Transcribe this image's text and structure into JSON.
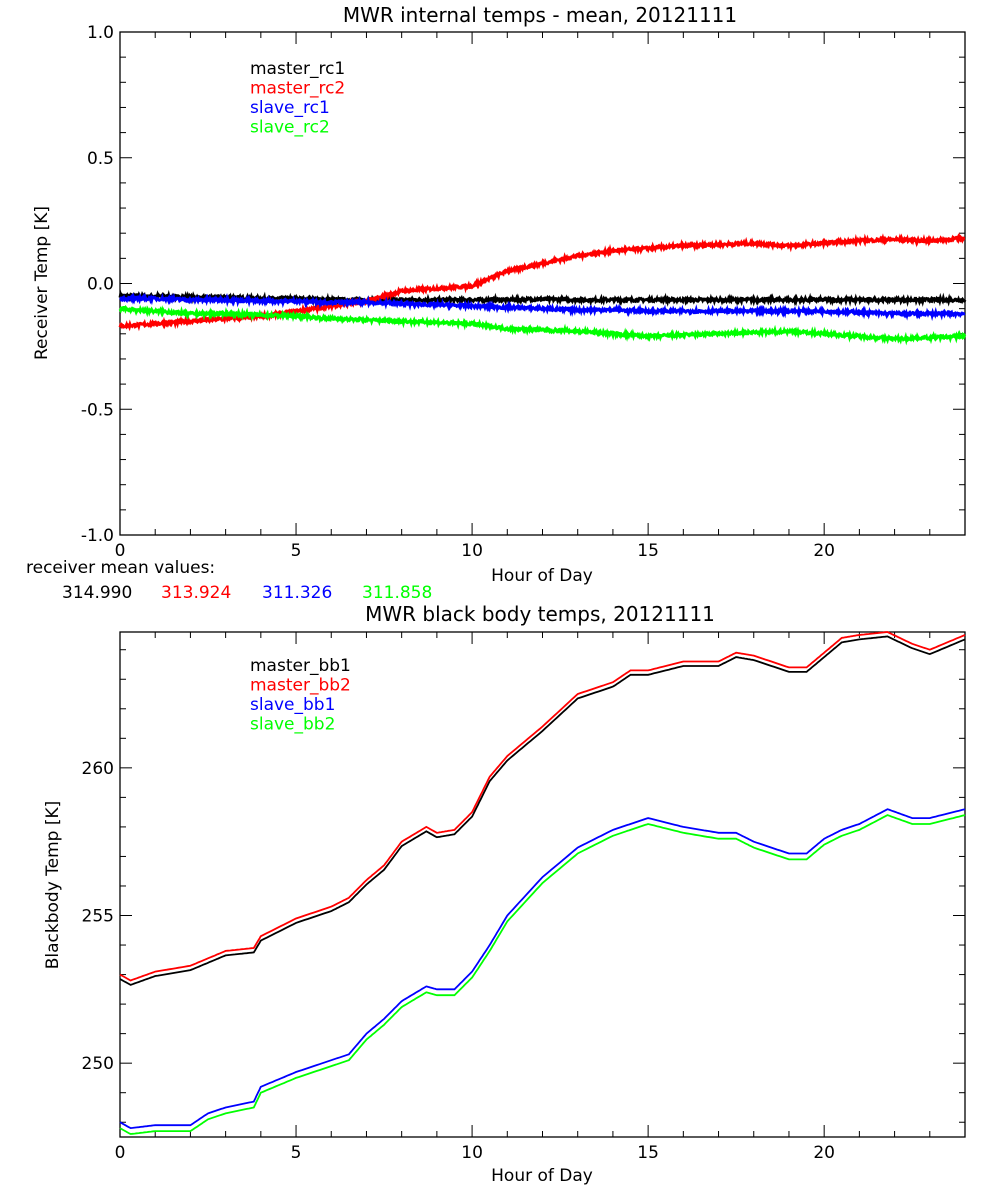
{
  "colors": {
    "master_1": "#000000",
    "master_2": "#ff0000",
    "slave_1": "#0000ff",
    "slave_2": "#00ff00"
  },
  "mean_values": {
    "label": "receiver mean values:",
    "values": [
      "314.990",
      "313.924",
      "311.326",
      "311.858"
    ]
  },
  "chart_data": [
    {
      "type": "line",
      "title": "MWR internal temps - mean, 20121111",
      "xlabel": "Hour of Day",
      "ylabel": "Receiver Temp [K]",
      "xlim": [
        0,
        24
      ],
      "ylim": [
        -1.0,
        1.0
      ],
      "xticks": [
        "0",
        "5",
        "10",
        "15",
        "20"
      ],
      "yticks": [
        "-1.0",
        "-0.5",
        "0.0",
        "0.5",
        "1.0"
      ],
      "grid": false,
      "legend": "top-left",
      "x": [
        0,
        1,
        2,
        3,
        4,
        5,
        6,
        7,
        8,
        9,
        10,
        11,
        12,
        13,
        14,
        15,
        16,
        17,
        18,
        19,
        20,
        21,
        22,
        23,
        24
      ],
      "series": [
        {
          "name": "master_rc1",
          "values": [
            -0.05,
            -0.05,
            -0.055,
            -0.055,
            -0.06,
            -0.06,
            -0.065,
            -0.065,
            -0.065,
            -0.065,
            -0.065,
            -0.065,
            -0.062,
            -0.065,
            -0.065,
            -0.065,
            -0.065,
            -0.065,
            -0.065,
            -0.065,
            -0.065,
            -0.065,
            -0.065,
            -0.065,
            -0.065
          ]
        },
        {
          "name": "master_rc2",
          "values": [
            -0.17,
            -0.16,
            -0.15,
            -0.14,
            -0.13,
            -0.11,
            -0.09,
            -0.07,
            -0.03,
            -0.02,
            -0.01,
            0.05,
            0.08,
            0.11,
            0.13,
            0.14,
            0.15,
            0.155,
            0.16,
            0.15,
            0.16,
            0.17,
            0.175,
            0.17,
            0.18
          ]
        },
        {
          "name": "slave_rc1",
          "values": [
            -0.06,
            -0.06,
            -0.065,
            -0.065,
            -0.07,
            -0.07,
            -0.075,
            -0.075,
            -0.08,
            -0.085,
            -0.09,
            -0.095,
            -0.1,
            -0.105,
            -0.105,
            -0.11,
            -0.11,
            -0.11,
            -0.11,
            -0.11,
            -0.11,
            -0.115,
            -0.12,
            -0.12,
            -0.12
          ]
        },
        {
          "name": "slave_rc2",
          "values": [
            -0.1,
            -0.11,
            -0.12,
            -0.12,
            -0.125,
            -0.13,
            -0.14,
            -0.145,
            -0.15,
            -0.155,
            -0.16,
            -0.18,
            -0.185,
            -0.19,
            -0.2,
            -0.21,
            -0.205,
            -0.2,
            -0.195,
            -0.19,
            -0.2,
            -0.21,
            -0.22,
            -0.215,
            -0.21
          ]
        }
      ]
    },
    {
      "type": "line",
      "title": "MWR black body temps, 20121111",
      "xlabel": "Hour of Day",
      "ylabel": "Blackbody Temp [K]",
      "xlim": [
        0,
        24
      ],
      "ylim": [
        247.5,
        264.6
      ],
      "xticks": [
        "0",
        "5",
        "10",
        "15",
        "20"
      ],
      "yticks": [
        "250",
        "255",
        "260"
      ],
      "grid": false,
      "legend": "top-left",
      "x": [
        0,
        0.3,
        1,
        2,
        2.5,
        3,
        3.8,
        4,
        5,
        6,
        6.5,
        7,
        7.5,
        8,
        8.7,
        9,
        9.5,
        10,
        10.5,
        11,
        12,
        13,
        14,
        14.5,
        15,
        16,
        17,
        17.5,
        18,
        19,
        19.5,
        20,
        20.5,
        21,
        21.8,
        22.5,
        23,
        24
      ],
      "series": [
        {
          "name": "master_bb1",
          "values": [
            252.85,
            252.65,
            252.95,
            253.15,
            253.4,
            253.65,
            253.75,
            254.15,
            254.75,
            255.15,
            255.45,
            256.05,
            256.55,
            257.35,
            257.85,
            257.65,
            257.75,
            258.35,
            259.55,
            260.25,
            261.25,
            262.35,
            262.75,
            263.15,
            263.15,
            263.45,
            263.45,
            263.75,
            263.65,
            263.25,
            263.25,
            263.75,
            264.25,
            264.35,
            264.45,
            264.05,
            263.85,
            264.35
          ]
        },
        {
          "name": "master_bb2",
          "values": [
            253.0,
            252.8,
            253.1,
            253.3,
            253.55,
            253.8,
            253.9,
            254.3,
            254.9,
            255.3,
            255.6,
            256.2,
            256.7,
            257.5,
            258.0,
            257.8,
            257.9,
            258.5,
            259.7,
            260.4,
            261.4,
            262.5,
            262.9,
            263.3,
            263.3,
            263.6,
            263.6,
            263.9,
            263.8,
            263.4,
            263.4,
            263.9,
            264.4,
            264.5,
            264.6,
            264.2,
            264.0,
            264.5
          ]
        },
        {
          "name": "slave_bb1",
          "values": [
            248.0,
            247.8,
            247.9,
            247.9,
            248.3,
            248.5,
            248.7,
            249.2,
            249.7,
            250.1,
            250.3,
            251.0,
            251.5,
            252.1,
            252.6,
            252.5,
            252.5,
            253.1,
            254.0,
            255.0,
            256.3,
            257.3,
            257.9,
            258.1,
            258.3,
            258.0,
            257.8,
            257.8,
            257.5,
            257.1,
            257.1,
            257.6,
            257.9,
            258.1,
            258.6,
            258.3,
            258.3,
            258.6
          ]
        },
        {
          "name": "slave_bb2",
          "values": [
            247.8,
            247.6,
            247.7,
            247.7,
            248.1,
            248.3,
            248.5,
            249.0,
            249.5,
            249.9,
            250.1,
            250.8,
            251.3,
            251.9,
            252.4,
            252.3,
            252.3,
            252.9,
            253.8,
            254.8,
            256.1,
            257.1,
            257.7,
            257.9,
            258.1,
            257.8,
            257.6,
            257.6,
            257.3,
            256.9,
            256.9,
            257.4,
            257.7,
            257.9,
            258.4,
            258.1,
            258.1,
            258.4
          ]
        }
      ]
    }
  ]
}
